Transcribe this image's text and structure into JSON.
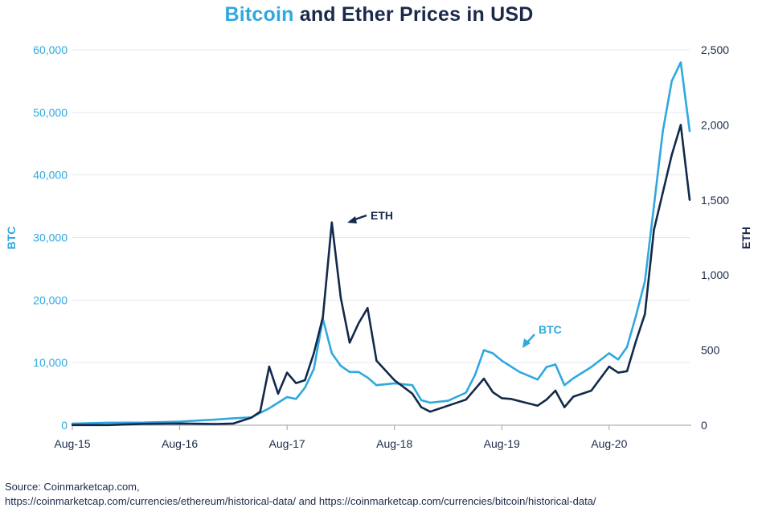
{
  "title": {
    "accent": "Bitcoin",
    "rest": " and Ether Prices in USD"
  },
  "source": {
    "line1": "Source: Coinmarketcap.com,",
    "line2": "https://coinmarketcap.com/currencies/ethereum/historical-data/ and https://coinmarketcap.com/currencies/bitcoin/historical-data/"
  },
  "colors": {
    "btc": "#2fa8e0",
    "eth": "#13294b",
    "grid": "#e4e8ee",
    "axis": "#9aa3ad"
  },
  "chart_data": {
    "type": "line",
    "title": "Bitcoin and Ether Prices in USD",
    "xlabel": "",
    "ylabel_left": "BTC",
    "ylabel_right": "ETH",
    "x_ticks": [
      "Aug-15",
      "Aug-16",
      "Aug-17",
      "Aug-18",
      "Aug-19",
      "Aug-20"
    ],
    "y_left": {
      "ticks": [
        "0",
        "10,000",
        "20,000",
        "30,000",
        "40,000",
        "50,000",
        "60,000"
      ],
      "range": [
        0,
        60000
      ]
    },
    "y_right": {
      "ticks": [
        "0",
        "500",
        "1,000",
        "1,500",
        "2,000",
        "2,500"
      ],
      "range": [
        0,
        2500
      ]
    },
    "x_range": [
      "2015-08",
      "2021-05"
    ],
    "grid": true,
    "annotations": [
      {
        "text": "ETH",
        "series": "ETH"
      },
      {
        "text": "BTC",
        "series": "BTC"
      }
    ],
    "series": [
      {
        "name": "BTC",
        "axis": "left",
        "x": [
          "2015-08",
          "2015-12",
          "2016-04",
          "2016-08",
          "2016-12",
          "2017-02",
          "2017-04",
          "2017-06",
          "2017-08",
          "2017-09",
          "2017-10",
          "2017-11",
          "2017-12",
          "2018-01",
          "2018-02",
          "2018-03",
          "2018-04",
          "2018-05",
          "2018-06",
          "2018-08",
          "2018-10",
          "2018-11",
          "2018-12",
          "2019-02",
          "2019-04",
          "2019-05",
          "2019-06",
          "2019-07",
          "2019-08",
          "2019-09",
          "2019-10",
          "2019-12",
          "2020-01",
          "2020-02",
          "2020-03",
          "2020-04",
          "2020-06",
          "2020-08",
          "2020-09",
          "2020-10",
          "2020-11",
          "2020-12",
          "2021-01",
          "2021-02",
          "2021-03",
          "2021-04",
          "2021-05"
        ],
        "values": [
          260,
          400,
          430,
          580,
          900,
          1100,
          1250,
          2700,
          4500,
          4200,
          6000,
          9000,
          17000,
          11500,
          9500,
          8500,
          8500,
          7600,
          6400,
          6700,
          6400,
          4000,
          3600,
          3900,
          5200,
          8000,
          12000,
          11500,
          10300,
          9400,
          8500,
          7300,
          9300,
          9700,
          6400,
          7500,
          9300,
          11500,
          10500,
          12500,
          17500,
          23000,
          35000,
          47000,
          55000,
          58000,
          47000
        ]
      },
      {
        "name": "ETH",
        "axis": "right",
        "x": [
          "2015-08",
          "2015-12",
          "2016-04",
          "2016-08",
          "2016-12",
          "2017-02",
          "2017-04",
          "2017-05",
          "2017-06",
          "2017-07",
          "2017-08",
          "2017-09",
          "2017-10",
          "2017-11",
          "2017-12",
          "2018-01",
          "2018-02",
          "2018-03",
          "2018-04",
          "2018-05",
          "2018-06",
          "2018-08",
          "2018-10",
          "2018-11",
          "2018-12",
          "2019-02",
          "2019-04",
          "2019-05",
          "2019-06",
          "2019-07",
          "2019-08",
          "2019-09",
          "2019-10",
          "2019-12",
          "2020-01",
          "2020-02",
          "2020-03",
          "2020-04",
          "2020-06",
          "2020-08",
          "2020-09",
          "2020-10",
          "2020-11",
          "2020-12",
          "2021-01",
          "2021-02",
          "2021-03",
          "2021-04",
          "2021-05"
        ],
        "values": [
          1,
          1,
          9,
          11,
          8,
          11,
          50,
          90,
          390,
          210,
          350,
          280,
          300,
          480,
          720,
          1350,
          850,
          550,
          680,
          780,
          430,
          300,
          210,
          120,
          90,
          130,
          170,
          240,
          310,
          220,
          180,
          175,
          160,
          130,
          170,
          230,
          120,
          190,
          230,
          390,
          350,
          360,
          560,
          740,
          1300,
          1550,
          1800,
          2000,
          1500
        ]
      }
    ]
  }
}
